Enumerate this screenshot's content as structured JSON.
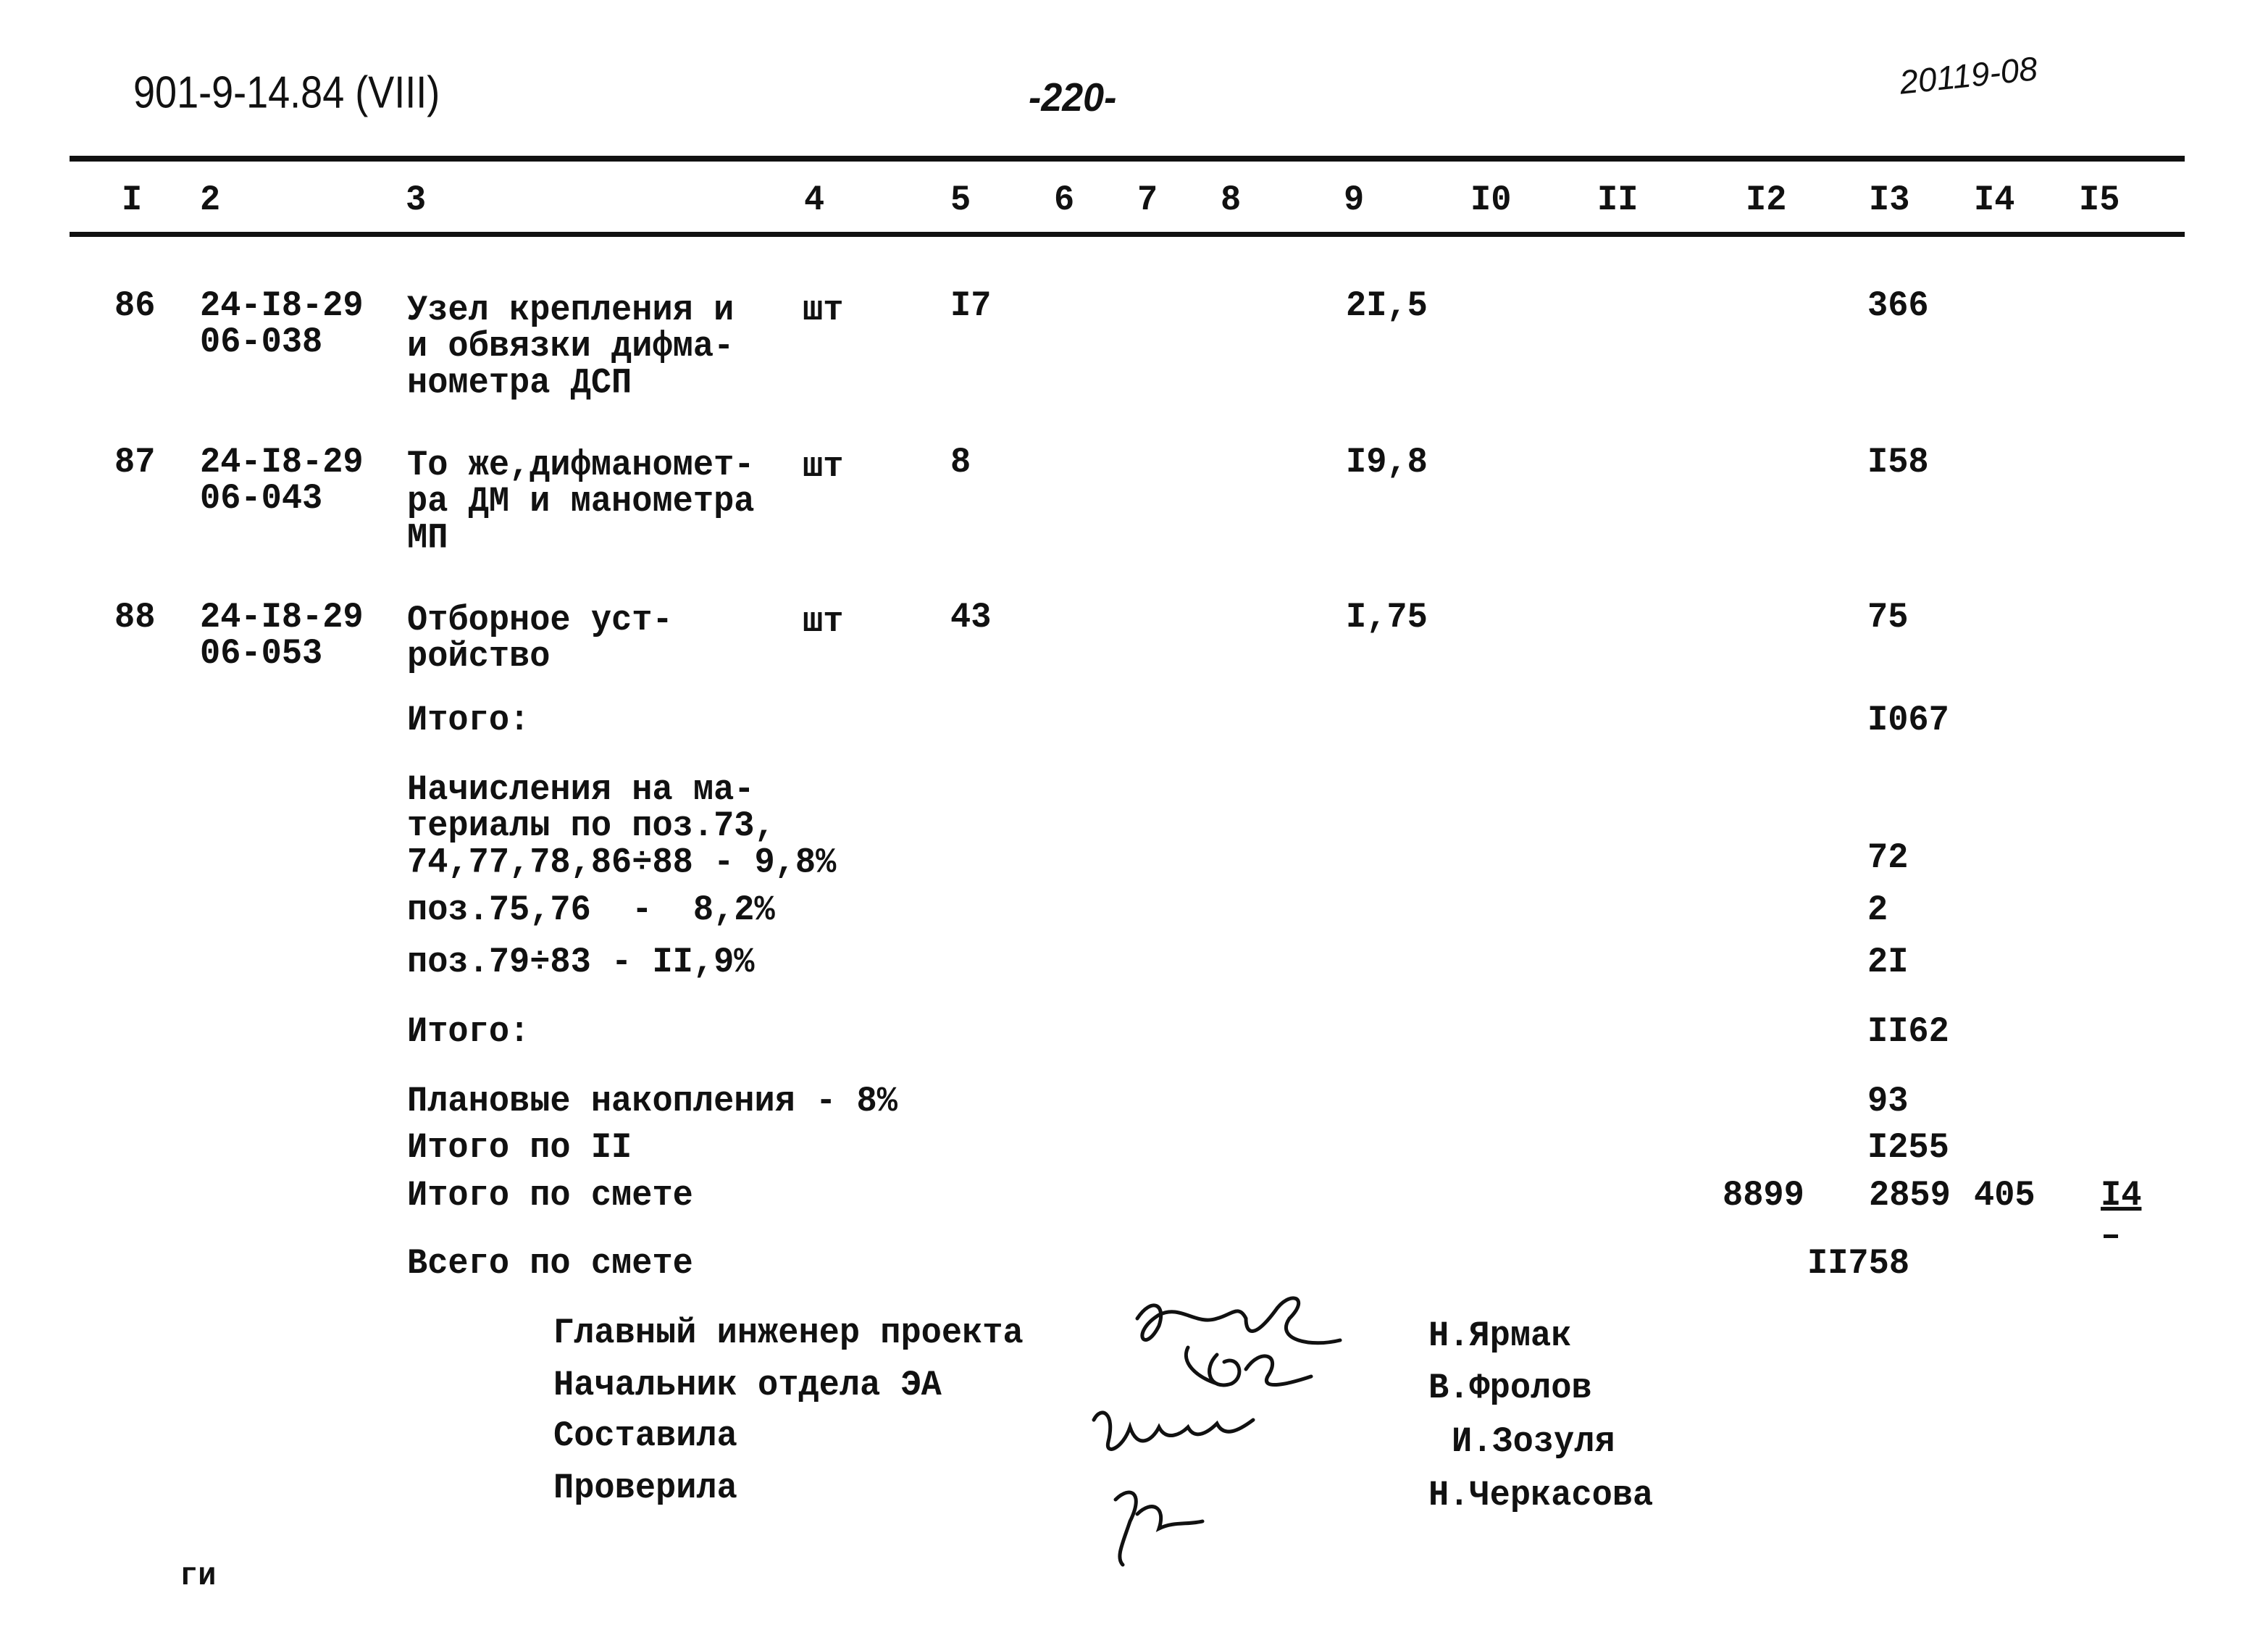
{
  "header": {
    "doc_code": "901-9-14.84 (VIII)",
    "page": "-220-",
    "handwritten_number": "20119-08"
  },
  "columns": [
    "I",
    "2",
    "3",
    "4",
    "5",
    "6",
    "7",
    "8",
    "9",
    "I0",
    "II",
    "I2",
    "I3",
    "I4",
    "I5"
  ],
  "rows": [
    {
      "pos": "86",
      "code": "24-I8-29\n06-038",
      "name": "Узел крепления и\nи обвязки дифма-\nнометра ДСП",
      "unit": "шт",
      "qty": "I7",
      "c9": "2I,5",
      "c13": "366"
    },
    {
      "pos": "87",
      "code": "24-I8-29\n06-043",
      "name": "То же,дифманомет-\nра ДМ и манометра\nМП",
      "unit": "шт",
      "qty": "8",
      "c9": "I9,8",
      "c13": "I58"
    },
    {
      "pos": "88",
      "code": "24-I8-29\n06-053",
      "name": "Отборное уст-\nройство",
      "unit": "шт",
      "qty": "43",
      "c9": "I,75",
      "c13": "75"
    }
  ],
  "totals": {
    "itogo1_label": "Итого:",
    "itogo1_value": "I067",
    "nach_label": "Начисления на ма-\nтериалы по поз.73,\n74,77,78,86÷88 - 9,8%",
    "nach_value": "72",
    "poz7576_label": "поз.75,76  -  8,2%",
    "poz7576_value": "2",
    "poz7983_label": "поз.79÷83 - II,9%",
    "poz7983_value": "2I",
    "itogo2_label": "Итого:",
    "itogo2_value": "II62",
    "plan_label": "Плановые накопления - 8%",
    "plan_value": "93",
    "itogo_ii_label": "Итого по II",
    "itogo_ii_value": "I255",
    "itogo_smeta_label": "Итого по смете",
    "itogo_smeta_c12": "8899",
    "itogo_smeta_c13": "2859",
    "itogo_smeta_c14": "405",
    "itogo_smeta_c15": "I4",
    "vsego_label": "Всего по смете",
    "vsego_value": "II758"
  },
  "signatures": [
    {
      "role": "Главный инженер проекта",
      "name": "Н.Ярмак"
    },
    {
      "role": "Начальник отдела ЭА",
      "name": "В.Фролов"
    },
    {
      "role": "Составила",
      "name": "И.Зозуля"
    },
    {
      "role": "Проверила",
      "name": "Н.Черкасова"
    }
  ],
  "footer_mark": "ги"
}
